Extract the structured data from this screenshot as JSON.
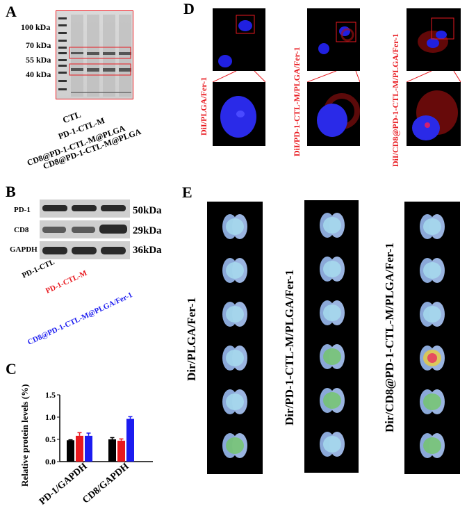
{
  "panels": {
    "A": "A",
    "B": "B",
    "C": "C",
    "D": "D",
    "E": "E"
  },
  "colors": {
    "red": "#e8191f",
    "blue": "#1c1cf0",
    "black": "#000000"
  },
  "panelA": {
    "markers": [
      "100 kDa",
      "70 kDa",
      "55 kDa",
      "40 kDa"
    ],
    "lanes": [
      "CTL",
      "PD-1-CTL-M",
      "CD8@PD-1-CTL-M@PLGA",
      "CD8@PD-1-CTL-M@PLGA"
    ]
  },
  "panelB": {
    "proteins": [
      "PD-1",
      "CD8",
      "GAPDH"
    ],
    "sizes": [
      "50kDa",
      "29kDa",
      "36kDa"
    ],
    "lanes": [
      "PD-1-CTL",
      "PD-1-CTL-M",
      "CD8@PD-1-CTL-M@PLGA/Fer-1"
    ]
  },
  "panelD": {
    "groups": [
      "DiI/PLGA/Fer-1",
      "DiI/PD-1-CTL-M/PLGA/Fer-1",
      "DiI/CD8@PD-1-CTL-M/PLGA/Fer-1"
    ]
  },
  "panelE": {
    "groups": [
      "Dir/PLGA/Fer-1",
      "Dir/PD-1-CTL-M/PLGA/Fer-1",
      "Dir/CD8@PD-1-CTL-M/PLGA/Fer-1"
    ]
  },
  "chart_data": {
    "type": "bar",
    "categories": [
      "PD-1/GAPDH",
      "CD8/GAPDH"
    ],
    "series": [
      {
        "color": "#000000",
        "values": [
          0.48,
          0.5
        ],
        "errors": [
          0.01,
          0.04
        ]
      },
      {
        "color": "#e8191f",
        "values": [
          0.58,
          0.47
        ],
        "errors": [
          0.07,
          0.04
        ]
      },
      {
        "color": "#1c1cf0",
        "values": [
          0.58,
          0.96
        ],
        "errors": [
          0.06,
          0.05
        ]
      }
    ],
    "ylabel": "Relative protein levels (%)",
    "yticks": [
      "0.0",
      "0.5",
      "1.0",
      "1.5"
    ],
    "ylim": [
      0,
      1.5
    ]
  }
}
